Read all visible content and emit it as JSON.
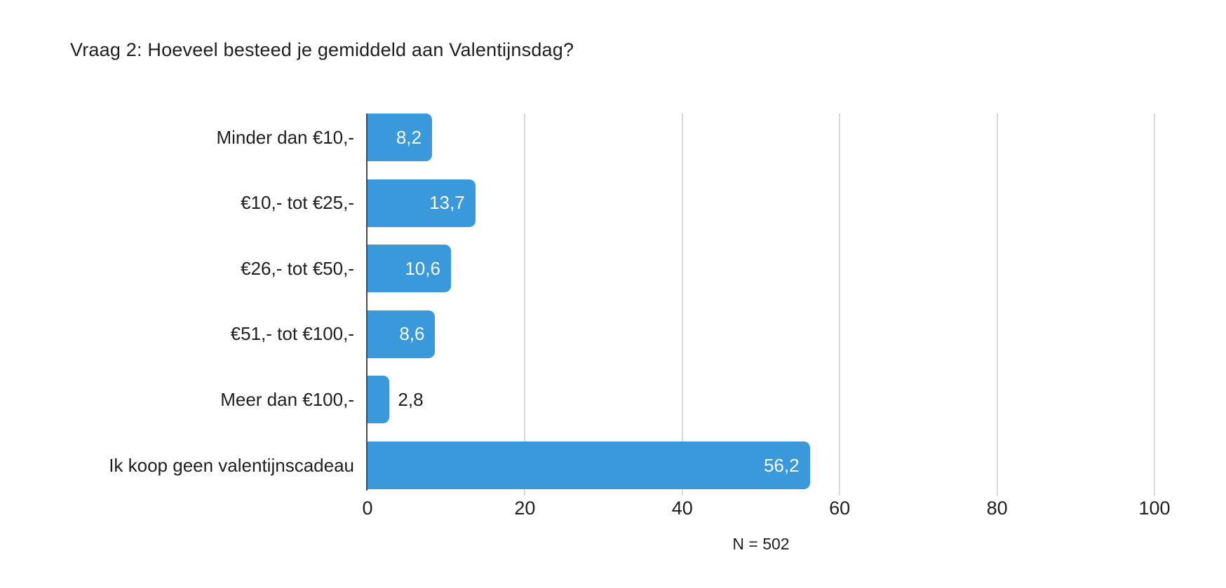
{
  "chart_data": {
    "type": "bar",
    "orientation": "horizontal",
    "title": "Vraag 2: Hoeveel besteed je gemiddeld aan Valentijnsdag?",
    "categories": [
      "Minder dan €10,-",
      "€10,- tot €25,-",
      "€26,- tot €50,-",
      "€51,- tot €100,-",
      "Meer dan €100,-",
      "Ik koop geen valentijnscadeau"
    ],
    "values": [
      8.2,
      13.7,
      10.6,
      8.6,
      2.8,
      56.2
    ],
    "value_labels": [
      "8,2",
      "13,7",
      "10,6",
      "8,6",
      "2,8",
      "56,2"
    ],
    "xlabel": "",
    "ylabel": "",
    "xlim": [
      0,
      100
    ],
    "xticks": [
      0,
      20,
      40,
      60,
      80,
      100
    ],
    "grid": "vertical-only",
    "legend": "none",
    "footnote": "N = 502",
    "colors": {
      "bar": "#3999DB",
      "value_label_inside": "#FFFFFF",
      "value_label_outside": "#1F1F1F",
      "text": "#1F1F1F",
      "gridline": "#D9D9D9",
      "zero_axis": "#4A4A4A",
      "background": "#FFFFFF"
    }
  }
}
